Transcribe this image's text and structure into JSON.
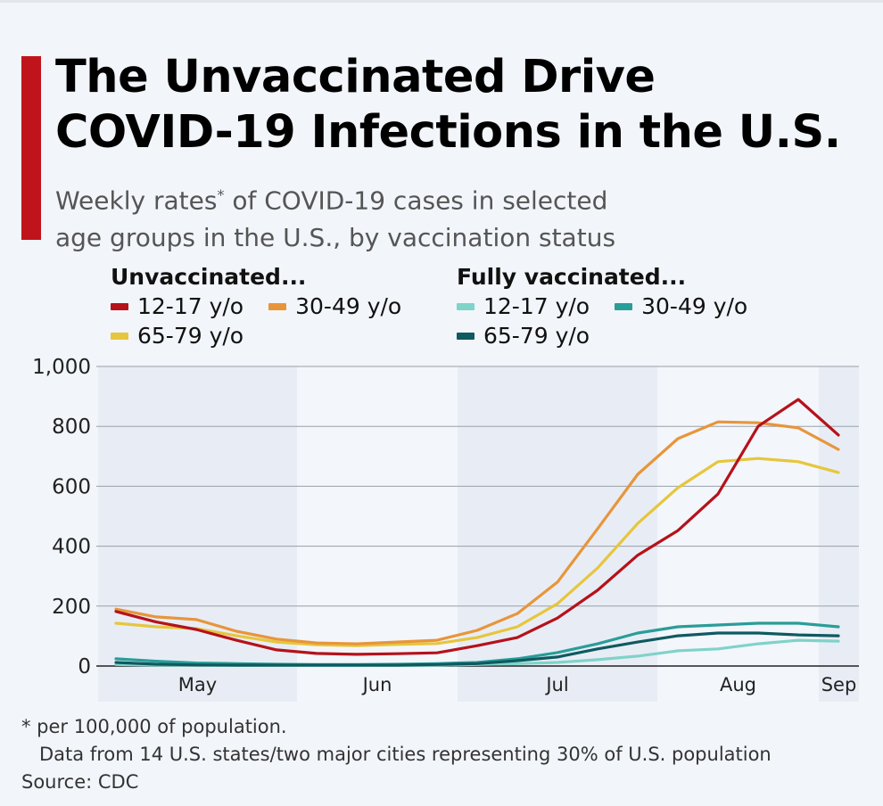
{
  "title": [
    "The Unvaccinated Drive",
    "COVID-19 Infections in the U.S."
  ],
  "subtitle": {
    "line1_a": "Weekly rates",
    "line1_sup": "*",
    "line1_b": " of COVID-19 cases in selected",
    "line2": "age groups in the U.S., by vaccination status"
  },
  "legend": {
    "groups": [
      {
        "heading": "Unvaccinated...",
        "items": [
          {
            "label": "12-17 y/o",
            "color": "#b5121b"
          },
          {
            "label": "30-49 y/o",
            "color": "#e8953a"
          },
          {
            "label": "65-79 y/o",
            "color": "#e6c63c"
          }
        ]
      },
      {
        "heading": "Fully vaccinated...",
        "items": [
          {
            "label": "12-17 y/o",
            "color": "#7fd3c9"
          },
          {
            "label": "30-49 y/o",
            "color": "#2a9d98"
          },
          {
            "label": "65-79 y/o",
            "color": "#0e5a60"
          }
        ]
      }
    ]
  },
  "chart_data": {
    "type": "line",
    "title": "",
    "xlabel": "",
    "ylabel": "",
    "ylim": [
      0,
      1000
    ],
    "y_ticks": [
      "0",
      "200",
      "400",
      "600",
      "800",
      "1,000"
    ],
    "y_tick_values": [
      0,
      200,
      400,
      600,
      800,
      1000
    ],
    "x_tick_labels": [
      "May",
      "Jun",
      "Jul",
      "Aug",
      "Sep"
    ],
    "grid": true,
    "frequency": "weekly",
    "series": [
      {
        "name": "Unvaccinated 12-17 y/o",
        "color": "#b5121b",
        "values": [
          182,
          147,
          122,
          86,
          54,
          42,
          39,
          41,
          44,
          68,
          95,
          160,
          253,
          370,
          452,
          574,
          800,
          890,
          771
        ]
      },
      {
        "name": "Unvaccinated 30-49 y/o",
        "color": "#e8953a",
        "values": [
          190,
          164,
          155,
          116,
          90,
          77,
          74,
          80,
          86,
          119,
          175,
          280,
          458,
          640,
          759,
          815,
          812,
          795,
          723
        ]
      },
      {
        "name": "Unvaccinated 65-79 y/o",
        "color": "#e6c63c",
        "values": [
          143,
          131,
          125,
          101,
          80,
          71,
          68,
          72,
          75,
          95,
          131,
          208,
          327,
          476,
          595,
          682,
          693,
          682,
          646
        ]
      },
      {
        "name": "Fully vaccinated 12-17 y/o",
        "color": "#7fd3c9",
        "values": [
          5,
          3,
          3,
          2,
          2,
          2,
          2,
          2,
          3,
          5,
          8,
          12,
          21,
          33,
          51,
          57,
          74,
          86,
          83
        ]
      },
      {
        "name": "Fully vaccinated 30-49 y/o",
        "color": "#2a9d98",
        "values": [
          24,
          16,
          10,
          8,
          6,
          5,
          5,
          6,
          8,
          12,
          24,
          45,
          74,
          110,
          131,
          137,
          143,
          143,
          131
        ]
      },
      {
        "name": "Fully vaccinated 65-79 y/o",
        "color": "#0e5a60",
        "values": [
          12,
          6,
          4,
          3,
          3,
          3,
          3,
          3,
          5,
          8,
          18,
          30,
          57,
          80,
          101,
          110,
          110,
          104,
          101
        ]
      }
    ]
  },
  "footer": {
    "note": "* per 100,000 of population.",
    "data_note": "Data from 14 U.S. states/two major cities representing 30% of U.S. population",
    "source": "Source: CDC"
  }
}
